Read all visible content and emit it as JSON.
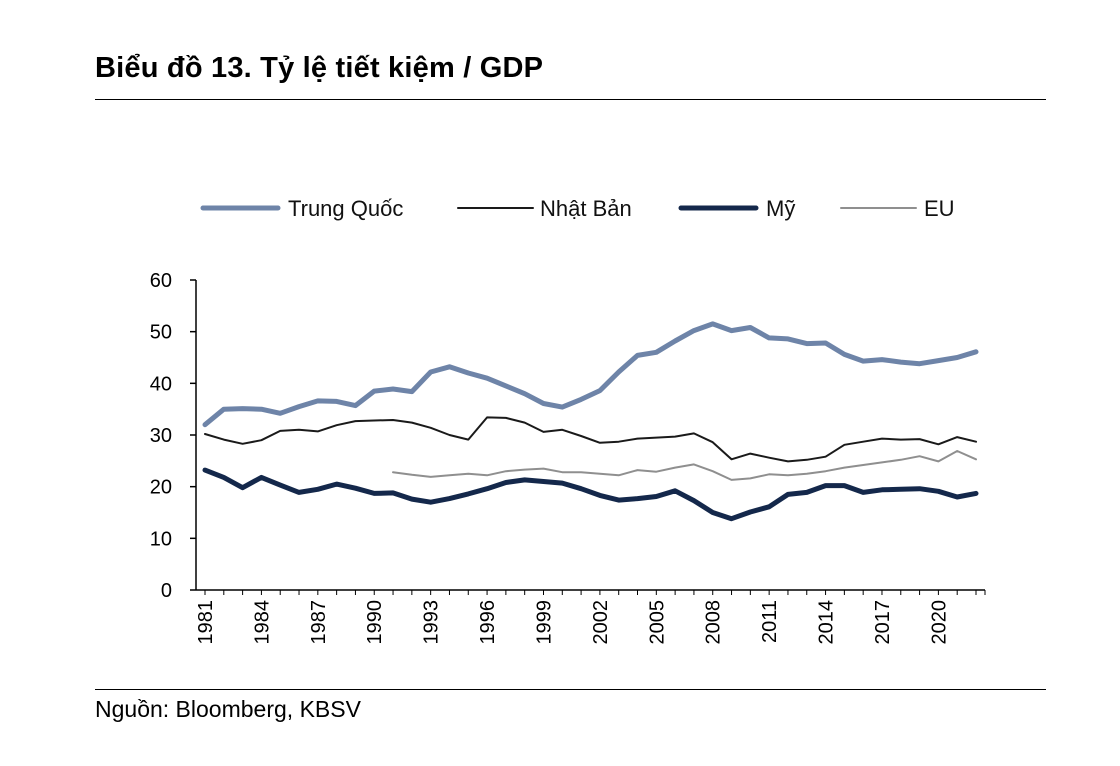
{
  "title": "Biểu đồ 13. Tỷ lệ tiết kiệm / GDP",
  "source": "Nguồn: Bloomberg, KBSV",
  "chart_data": {
    "type": "line",
    "title": "Biểu đồ 13. Tỷ lệ tiết kiệm / GDP",
    "xlabel": "",
    "ylabel": "",
    "ylim": [
      0,
      60
    ],
    "yticks": [
      0,
      10,
      20,
      30,
      40,
      50,
      60
    ],
    "xlim": [
      1981,
      2022
    ],
    "xticks": [
      1981,
      1984,
      1987,
      1990,
      1993,
      1996,
      1999,
      2002,
      2005,
      2008,
      2011,
      2014,
      2017,
      2020
    ],
    "legend_position": "top",
    "series": [
      {
        "name": "Trung Quốc",
        "color": "#6e84a8",
        "width": 5,
        "x": [
          1981,
          1982,
          1983,
          1984,
          1985,
          1986,
          1987,
          1988,
          1989,
          1990,
          1991,
          1992,
          1993,
          1994,
          1995,
          1996,
          1997,
          1998,
          1999,
          2000,
          2001,
          2002,
          2003,
          2004,
          2005,
          2006,
          2007,
          2008,
          2009,
          2010,
          2011,
          2012,
          2013,
          2014,
          2015,
          2016,
          2017,
          2018,
          2019,
          2020,
          2021,
          2022
        ],
        "values": [
          32,
          35,
          35.1,
          35,
          34.2,
          35.5,
          36.6,
          36.5,
          35.7,
          38.5,
          38.9,
          38.4,
          42.2,
          43.2,
          42,
          41,
          39.5,
          38,
          36.1,
          35.4,
          36.9,
          38.6,
          42.2,
          45.4,
          46,
          48.2,
          50.2,
          51.5,
          50.2,
          50.8,
          48.8,
          48.6,
          47.7,
          47.8,
          45.6,
          44.3,
          44.6,
          44.1,
          43.8,
          44.4,
          45,
          46.1
        ]
      },
      {
        "name": "Nhật Bản",
        "color": "#1a1a1a",
        "width": 2,
        "x": [
          1981,
          1982,
          1983,
          1984,
          1985,
          1986,
          1987,
          1988,
          1989,
          1990,
          1991,
          1992,
          1993,
          1994,
          1995,
          1996,
          1997,
          1998,
          1999,
          2000,
          2001,
          2002,
          2003,
          2004,
          2005,
          2006,
          2007,
          2008,
          2009,
          2010,
          2011,
          2012,
          2013,
          2014,
          2015,
          2016,
          2017,
          2018,
          2019,
          2020,
          2021,
          2022
        ],
        "values": [
          30.2,
          29.1,
          28.3,
          29,
          30.8,
          31,
          30.7,
          31.9,
          32.7,
          32.8,
          32.9,
          32.4,
          31.4,
          30,
          29.1,
          33.4,
          33.3,
          32.4,
          30.6,
          31,
          29.8,
          28.5,
          28.7,
          29.3,
          29.5,
          29.7,
          30.3,
          28.6,
          25.3,
          26.4,
          25.6,
          24.9,
          25.2,
          25.8,
          28.1,
          28.7,
          29.3,
          29.1,
          29.2,
          28.2,
          29.6,
          28.7
        ]
      },
      {
        "name": "Mỹ",
        "color": "#14284b",
        "width": 5,
        "x": [
          1981,
          1982,
          1983,
          1984,
          1985,
          1986,
          1987,
          1988,
          1989,
          1990,
          1991,
          1992,
          1993,
          1994,
          1995,
          1996,
          1997,
          1998,
          1999,
          2000,
          2001,
          2002,
          2003,
          2004,
          2005,
          2006,
          2007,
          2008,
          2009,
          2010,
          2011,
          2012,
          2013,
          2014,
          2015,
          2016,
          2017,
          2018,
          2019,
          2020,
          2021,
          2022
        ],
        "values": [
          23.2,
          21.8,
          19.8,
          21.8,
          20.3,
          18.9,
          19.5,
          20.5,
          19.7,
          18.7,
          18.8,
          17.6,
          17,
          17.7,
          18.6,
          19.6,
          20.8,
          21.3,
          21,
          20.7,
          19.6,
          18.3,
          17.4,
          17.7,
          18.1,
          19.2,
          17.3,
          15,
          13.8,
          15.1,
          16.1,
          18.5,
          18.9,
          20.2,
          20.2,
          18.9,
          19.4,
          19.5,
          19.6,
          19.1,
          18,
          18.7
        ]
      },
      {
        "name": "EU",
        "color": "#8f8f8f",
        "width": 2,
        "x": [
          1991,
          1992,
          1993,
          1994,
          1995,
          1996,
          1997,
          1998,
          1999,
          2000,
          2001,
          2002,
          2003,
          2004,
          2005,
          2006,
          2007,
          2008,
          2009,
          2010,
          2011,
          2012,
          2013,
          2014,
          2015,
          2016,
          2017,
          2018,
          2019,
          2020,
          2021,
          2022
        ],
        "values": [
          22.8,
          22.3,
          21.9,
          22.2,
          22.5,
          22.2,
          23,
          23.3,
          23.5,
          22.8,
          22.8,
          22.5,
          22.2,
          23.2,
          22.9,
          23.7,
          24.3,
          23,
          21.3,
          21.6,
          22.4,
          22.2,
          22.5,
          23,
          23.7,
          24.2,
          24.7,
          25.2,
          25.9,
          24.9,
          26.9,
          25.3
        ]
      }
    ]
  }
}
